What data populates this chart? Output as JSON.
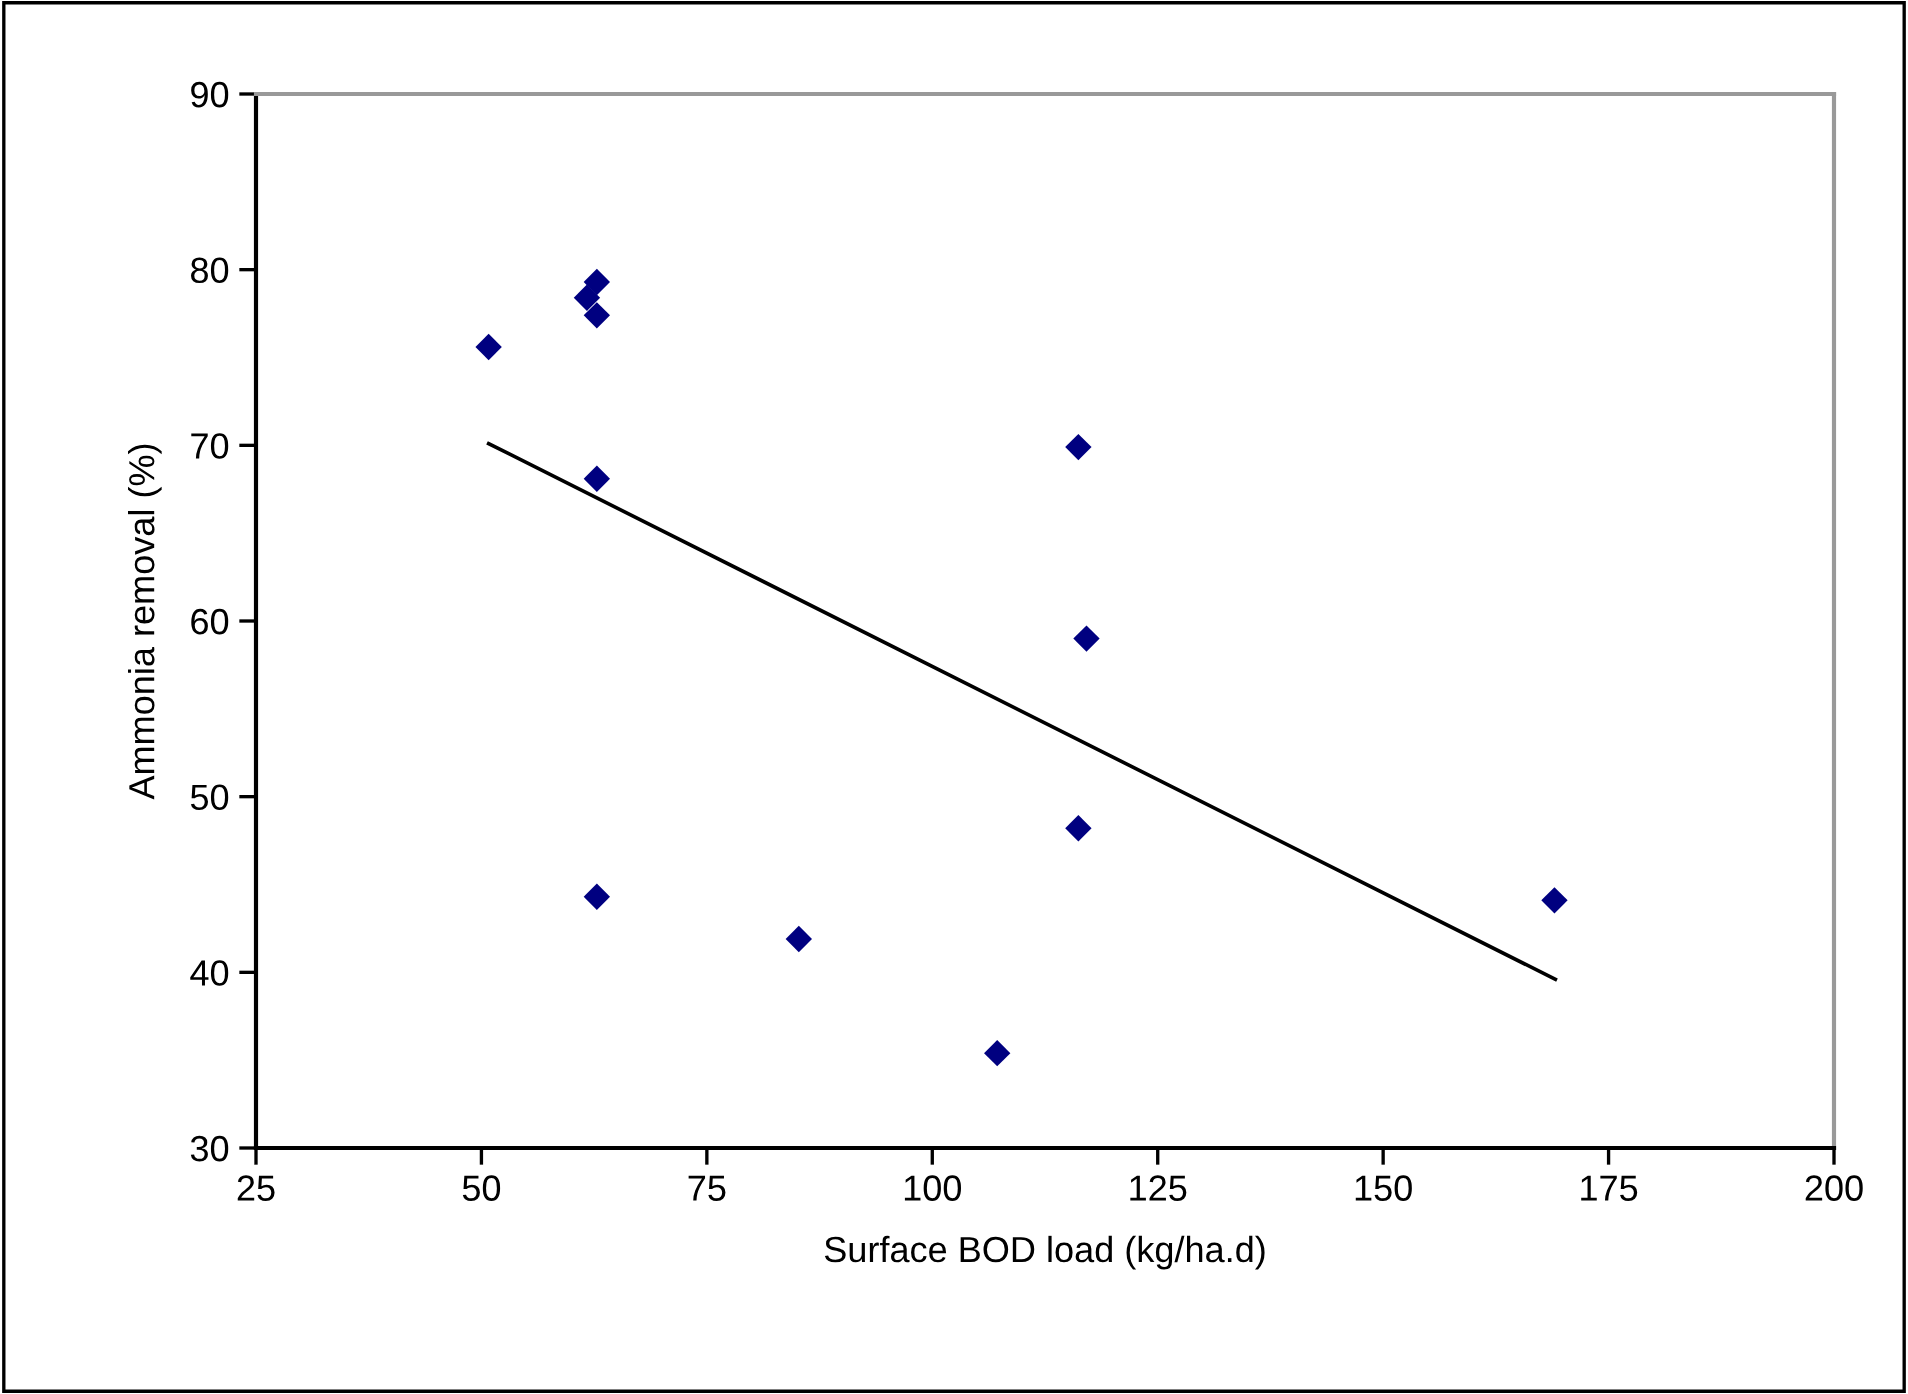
{
  "chart_data": {
    "type": "scatter",
    "xlabel": "Surface BOD load (kg/ha.d)",
    "ylabel": "Ammonia removal (%)",
    "xlim": [
      25,
      200
    ],
    "xticks": [
      25,
      50,
      75,
      100,
      125,
      150,
      175,
      200
    ],
    "ylim": [
      30,
      90
    ],
    "yticks": [
      30,
      40,
      50,
      60,
      70,
      80,
      90
    ],
    "grid": false,
    "legend": false,
    "series": [
      {
        "color": "#000080",
        "marker": "diamond",
        "x": [
          50.8,
          62.8,
          61.7,
          62.8,
          62.8,
          116.2,
          117.1,
          116.2,
          62.8,
          85.2,
          107.2,
          169.0
        ],
        "values": [
          75.6,
          79.3,
          78.4,
          77.4,
          68.1,
          69.9,
          59.0,
          48.2,
          44.3,
          41.9,
          35.4,
          44.1
        ]
      },
      {
        "type": "line",
        "color": "#000000",
        "marker": "none",
        "line_style": "solid",
        "x": [
          50.8,
          169.1
        ],
        "values": [
          70.1,
          39.6
        ]
      }
    ]
  }
}
